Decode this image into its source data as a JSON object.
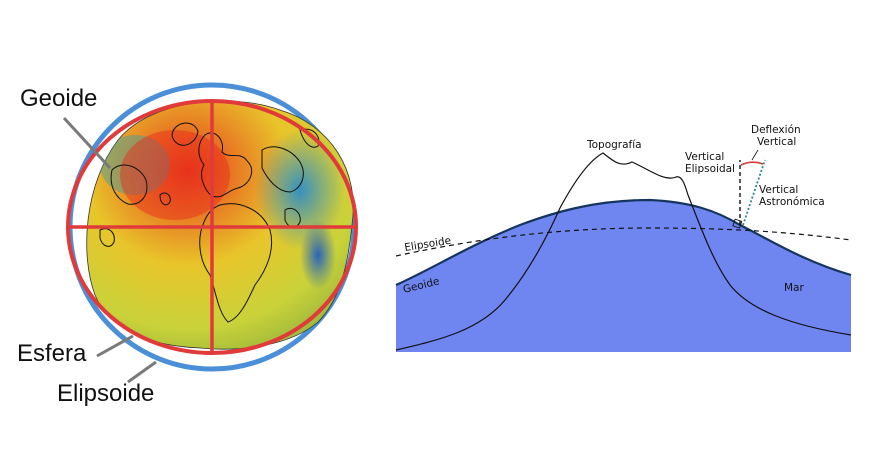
{
  "left_figure": {
    "labels": {
      "geoide": "Geoide",
      "esfera": "Esfera",
      "elipsoide": "Elipsoide"
    },
    "colors": {
      "sphere_ring": "#4a8fd8",
      "ellipsoid_ring": "#e03a3a",
      "leader_lines": "#7a7a7a",
      "geoid_high": "#e83a1e",
      "geoid_mid": "#e8c52a",
      "geoid_low": "#2a8ec8"
    }
  },
  "right_figure": {
    "labels": {
      "topografia": "Topografía",
      "deflexion_vertical": [
        "Deflexión",
        "Vertical"
      ],
      "vertical_elipsoidal": [
        "Vertical",
        "Elipsoidal"
      ],
      "vertical_astronomica": [
        "Vertical",
        "Astronómica"
      ],
      "elipsoide": "Elipsoide",
      "geoide": "Geoide",
      "mar": "Mar"
    },
    "colors": {
      "sea_fill": "#6f86f0",
      "geoid_line": "#15355f",
      "ellipsoid_dashed": "#111111",
      "deflection_arc": "#d23a3a",
      "astronomic_vertical": "#2a8a8a"
    }
  }
}
